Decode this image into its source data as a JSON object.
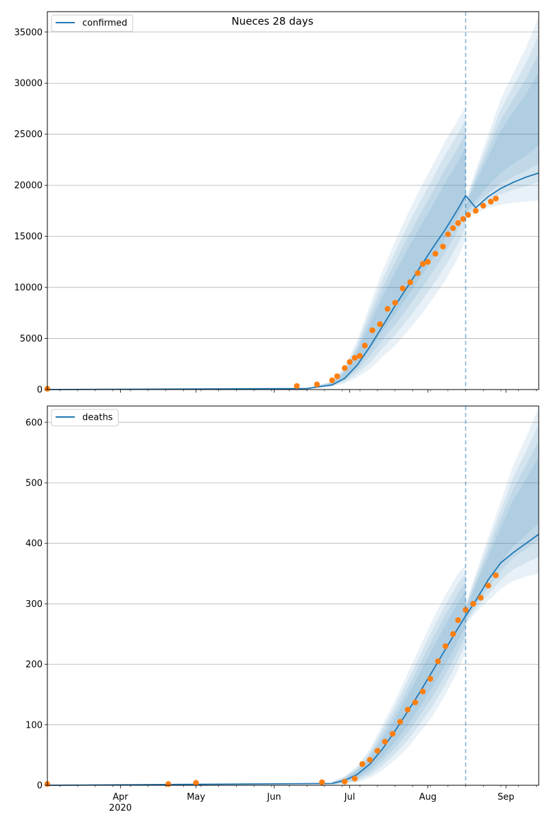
{
  "chart_data": [
    {
      "type": "line",
      "title": "Nueces 28 days",
      "xlabel": "",
      "ylabel": "",
      "ylim": [
        0,
        37000
      ],
      "xlim": [
        "2020-03-03",
        "2020-09-14"
      ],
      "yticks": [
        "0",
        "5000",
        "10000",
        "15000",
        "20000",
        "25000",
        "30000",
        "35000"
      ],
      "forecast_start": "2020-08-16",
      "grid": "horizontal",
      "legend": "top-left",
      "series": [
        {
          "name": "confirmed",
          "kind": "model-median",
          "color": "#1f77b4",
          "x": [
            "2020-03-03",
            "2020-06-14",
            "2020-06-24",
            "2020-06-29",
            "2020-07-04",
            "2020-07-09",
            "2020-07-14",
            "2020-07-19",
            "2020-07-24",
            "2020-07-29",
            "2020-08-03",
            "2020-08-08",
            "2020-08-13",
            "2020-08-16",
            "2020-08-20",
            "2020-08-25",
            "2020-08-30",
            "2020-09-04",
            "2020-09-09",
            "2020-09-14"
          ],
          "values": [
            0,
            100,
            450,
            1100,
            2400,
            4200,
            6200,
            8200,
            10100,
            12000,
            13900,
            15700,
            17700,
            19000,
            17800,
            18900,
            19700,
            20300,
            20800,
            21200
          ]
        },
        {
          "name": "",
          "kind": "observed",
          "color": "#ff7f0e",
          "x": [
            "2020-03-03",
            "2020-06-10",
            "2020-06-18",
            "2020-06-24",
            "2020-06-26",
            "2020-06-29",
            "2020-07-01",
            "2020-07-03",
            "2020-07-05",
            "2020-07-07",
            "2020-07-10",
            "2020-07-13",
            "2020-07-16",
            "2020-07-19",
            "2020-07-22",
            "2020-07-25",
            "2020-07-28",
            "2020-07-30",
            "2020-08-01",
            "2020-08-04",
            "2020-08-07",
            "2020-08-09",
            "2020-08-11",
            "2020-08-13",
            "2020-08-15",
            "2020-08-17",
            "2020-08-20",
            "2020-08-23",
            "2020-08-26",
            "2020-08-28"
          ],
          "values": [
            70,
            350,
            500,
            900,
            1300,
            2100,
            2700,
            3100,
            3300,
            4300,
            5800,
            6400,
            7900,
            8500,
            9900,
            10500,
            11400,
            12300,
            12500,
            13300,
            14000,
            15200,
            15800,
            16300,
            16700,
            17100,
            17500,
            18000,
            18400,
            18700
          ]
        }
      ],
      "bands": [
        {
          "x": [
            "2020-06-14",
            "2020-06-24",
            "2020-06-29",
            "2020-07-04",
            "2020-07-09",
            "2020-07-14",
            "2020-07-19",
            "2020-07-24",
            "2020-07-29",
            "2020-08-03",
            "2020-08-08",
            "2020-08-13",
            "2020-08-16"
          ],
          "low": [
            80,
            300,
            600,
            1200,
            2000,
            3200,
            4300,
            5700,
            7200,
            8900,
            10700,
            12900,
            14700
          ],
          "high": [
            150,
            800,
            2200,
            4800,
            8300,
            11600,
            14500,
            17200,
            19700,
            22000,
            24400,
            26400,
            27700
          ]
        },
        {
          "x": [
            "2020-08-16",
            "2020-08-20",
            "2020-08-25",
            "2020-08-30",
            "2020-09-04",
            "2020-09-09",
            "2020-09-14"
          ],
          "low": [
            16900,
            17300,
            17800,
            18100,
            18300,
            18400,
            18500
          ],
          "high": [
            18500,
            21500,
            25000,
            28500,
            31000,
            33500,
            36500
          ]
        }
      ]
    },
    {
      "type": "line",
      "title": "",
      "xlabel": "",
      "ylabel": "",
      "ylim": [
        0,
        627
      ],
      "xlim": [
        "2020-03-03",
        "2020-09-14"
      ],
      "yticks": [
        "0",
        "100",
        "200",
        "300",
        "400",
        "500",
        "600"
      ],
      "xticks": [
        "Apr",
        "May",
        "Jun",
        "Jul",
        "Aug",
        "Sep"
      ],
      "xtick_dates": [
        "2020-04-01",
        "2020-05-01",
        "2020-06-01",
        "2020-07-01",
        "2020-08-01",
        "2020-09-01"
      ],
      "xtick_sublabel": "2020",
      "forecast_start": "2020-08-16",
      "grid": "horizontal",
      "legend": "top-left",
      "series": [
        {
          "name": "deaths",
          "kind": "model-median",
          "color": "#1f77b4",
          "x": [
            "2020-03-03",
            "2020-06-24",
            "2020-06-29",
            "2020-07-04",
            "2020-07-09",
            "2020-07-14",
            "2020-07-19",
            "2020-07-24",
            "2020-07-29",
            "2020-08-03",
            "2020-08-08",
            "2020-08-13",
            "2020-08-16",
            "2020-08-20",
            "2020-08-25",
            "2020-08-30",
            "2020-09-04",
            "2020-09-09",
            "2020-09-14"
          ],
          "values": [
            0,
            3,
            8,
            18,
            35,
            60,
            90,
            122,
            155,
            190,
            225,
            260,
            280,
            305,
            340,
            368,
            385,
            400,
            415
          ]
        },
        {
          "name": "",
          "kind": "observed",
          "color": "#ff7f0e",
          "x": [
            "2020-03-03",
            "2020-04-20",
            "2020-05-01",
            "2020-06-20",
            "2020-06-29",
            "2020-07-03",
            "2020-07-06",
            "2020-07-09",
            "2020-07-12",
            "2020-07-15",
            "2020-07-18",
            "2020-07-21",
            "2020-07-24",
            "2020-07-27",
            "2020-07-30",
            "2020-08-02",
            "2020-08-05",
            "2020-08-08",
            "2020-08-11",
            "2020-08-13",
            "2020-08-16",
            "2020-08-19",
            "2020-08-22",
            "2020-08-25",
            "2020-08-28"
          ],
          "values": [
            2,
            2,
            4,
            5,
            6,
            11,
            35,
            42,
            57,
            72,
            85,
            105,
            125,
            137,
            155,
            176,
            205,
            230,
            250,
            273,
            290,
            300,
            310,
            330,
            347
          ]
        }
      ],
      "bands": [
        {
          "x": [
            "2020-06-24",
            "2020-06-29",
            "2020-07-04",
            "2020-07-09",
            "2020-07-14",
            "2020-07-19",
            "2020-07-24",
            "2020-07-29",
            "2020-08-03",
            "2020-08-08",
            "2020-08-13",
            "2020-08-16"
          ],
          "low": [
            1,
            2,
            5,
            12,
            25,
            42,
            62,
            88,
            115,
            150,
            190,
            220
          ],
          "high": [
            6,
            15,
            32,
            60,
            100,
            140,
            185,
            230,
            275,
            315,
            350,
            365
          ]
        },
        {
          "x": [
            "2020-08-16",
            "2020-08-20",
            "2020-08-25",
            "2020-08-30",
            "2020-09-04",
            "2020-09-09",
            "2020-09-14"
          ],
          "low": [
            265,
            285,
            305,
            325,
            338,
            345,
            350
          ],
          "high": [
            300,
            350,
            410,
            470,
            530,
            575,
            625
          ]
        }
      ]
    }
  ]
}
